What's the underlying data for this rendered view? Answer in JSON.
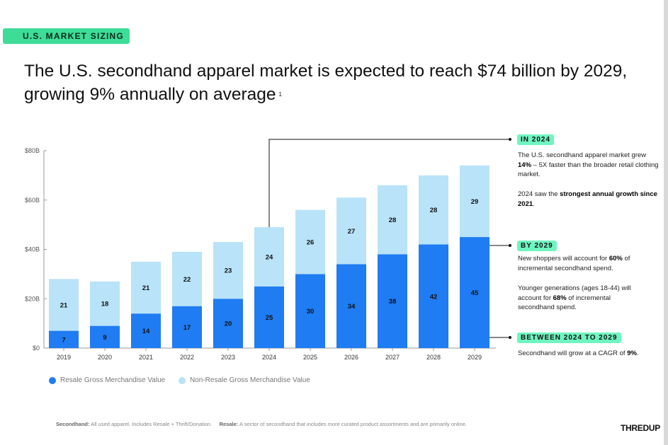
{
  "tag": "U.S. MARKET SIZING",
  "title": "The U.S. secondhand apparel market is expected to reach $74 billion by 2029, growing 9% annually on average",
  "footnote_mark": "1",
  "colors": {
    "resale": "#1f7cf2",
    "non_resale": "#b9e3f9",
    "badge": "#6ff5c0",
    "tag": "#3ddc97"
  },
  "chart_data": {
    "type": "bar",
    "stacked": true,
    "categories": [
      "2019",
      "2020",
      "2021",
      "2022",
      "2023",
      "2024",
      "2025",
      "2026",
      "2027",
      "2028",
      "2029"
    ],
    "series": [
      {
        "name": "Resale Gross Merchandise Value",
        "values": [
          7,
          9,
          14,
          17,
          20,
          25,
          30,
          34,
          38,
          42,
          45
        ]
      },
      {
        "name": "Non-Resale Gross Merchandise Value",
        "values": [
          21,
          18,
          21,
          22,
          23,
          24,
          26,
          27,
          28,
          28,
          29
        ]
      }
    ],
    "yticks": [
      "$0",
      "$20B",
      "$40B",
      "$60B",
      "$80B"
    ],
    "ylim": [
      0,
      80
    ],
    "legend": "bottom-left"
  },
  "annotations": [
    {
      "badge": "IN 2024",
      "p1_a": "The U.S. secondhand apparel market grew ",
      "p1_b": "14%",
      "p1_c": " – 5X faster than the broader retail clothing market.",
      "p2_a": "2024 saw the ",
      "p2_b": "strongest annual growth since 2021",
      "p2_c": "."
    },
    {
      "badge": "BY 2029",
      "p1_a": "New shoppers will account for ",
      "p1_b": "60%",
      "p1_c": " of incremental secondhand spend.",
      "p2_a": "Younger generations (ages 18-44) will account for ",
      "p2_b": "68%",
      "p2_c": " of incremental secondhand spend."
    },
    {
      "badge": "BETWEEN 2024 TO 2029",
      "p1_a": "Secondhand will grow at a CAGR of ",
      "p1_b": "9%",
      "p1_c": "."
    }
  ],
  "footer": {
    "k1": "Secondhand:",
    "v1": " All used apparel. Includes Resale + Thrift/Donation.",
    "k2": "Resale:",
    "v2": " A sector of secondhand that includes more curated product assortments and are primarily online."
  },
  "logo": "THREDUP"
}
